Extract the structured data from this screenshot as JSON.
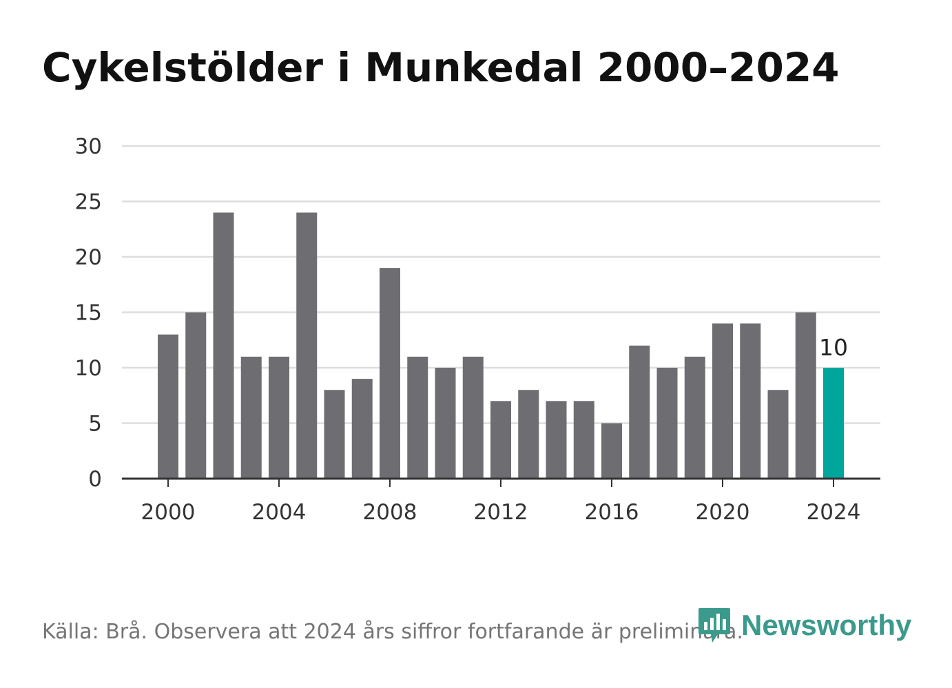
{
  "title": "Cykelstölder i Munkedal 2000–2024",
  "source": "Källa: Brå. Observera att 2024 års siffror fortfarande är preliminära.",
  "brand": "Newsworthy",
  "colors": {
    "bar": "#6e6d72",
    "highlight": "#00a69b",
    "grid": "#dddddd",
    "axis": "#333333",
    "brand": "#3a9a8c"
  },
  "chart_data": {
    "type": "bar",
    "title": "Cykelstölder i Munkedal 2000–2024",
    "xlabel": "",
    "ylabel": "",
    "categories": [
      2000,
      2001,
      2002,
      2003,
      2004,
      2005,
      2006,
      2007,
      2008,
      2009,
      2010,
      2011,
      2012,
      2013,
      2014,
      2015,
      2016,
      2017,
      2018,
      2019,
      2020,
      2021,
      2022,
      2023,
      2024
    ],
    "values": [
      13,
      15,
      24,
      11,
      11,
      24,
      8,
      9,
      19,
      11,
      10,
      11,
      7,
      8,
      7,
      7,
      5,
      12,
      10,
      11,
      14,
      14,
      8,
      15,
      10
    ],
    "ylim": [
      0,
      30
    ],
    "yticks": [
      0,
      5,
      10,
      15,
      20,
      25,
      30
    ],
    "xticks": [
      2000,
      2004,
      2008,
      2012,
      2016,
      2020,
      2024
    ],
    "highlight": {
      "category": 2024,
      "label": "10"
    },
    "grid": true
  }
}
